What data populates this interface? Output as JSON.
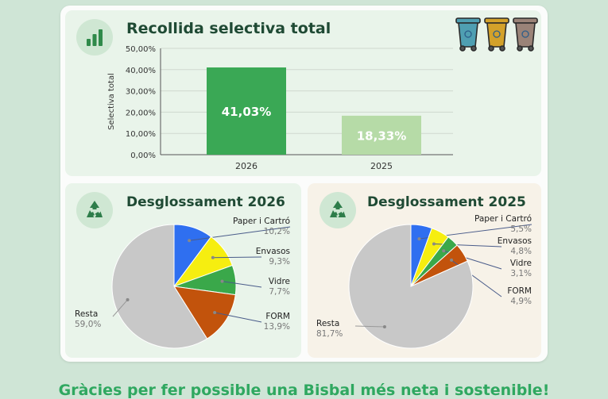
{
  "colors": {
    "bar_2026": "#3aa855",
    "bar_2025": "#b6dba7",
    "paper": "#2f6ff0",
    "envasos": "#f6ee10",
    "vidre": "#3aa84a",
    "form": "#c2530c",
    "resta": "#c8c8c8",
    "title": "#1f4a34",
    "footer": "#2fa860"
  },
  "chart_data": [
    {
      "type": "bar",
      "title": "Recollida selectiva total",
      "categories": [
        "2026",
        "2025"
      ],
      "values": [
        41.03,
        18.33
      ],
      "value_labels": [
        "41,03%",
        "18,33%"
      ],
      "ylabel": "Selectiva total",
      "ylim": [
        0,
        50
      ],
      "yticks": [
        "0,00%",
        "10,00%",
        "20,00%",
        "30,00%",
        "40,00%",
        "50,00%"
      ],
      "grid": true
    },
    {
      "type": "pie",
      "title": "Desglossament 2026",
      "slices": [
        {
          "label": "Paper i Cartró",
          "value": 10.2,
          "display": "10,2%",
          "color": "paper"
        },
        {
          "label": "Envasos",
          "value": 9.3,
          "display": "9,3%",
          "color": "envasos"
        },
        {
          "label": "Vidre",
          "value": 7.7,
          "display": "7,7%",
          "color": "vidre"
        },
        {
          "label": "FORM",
          "value": 13.9,
          "display": "13,9%",
          "color": "form"
        },
        {
          "label": "Resta",
          "value": 59.0,
          "display": "59,0%",
          "color": "resta"
        }
      ]
    },
    {
      "type": "pie",
      "title": "Desglossament 2025",
      "slices": [
        {
          "label": "Paper i Cartró",
          "value": 5.5,
          "display": "5,5%",
          "color": "paper"
        },
        {
          "label": "Envasos",
          "value": 4.8,
          "display": "4,8%",
          "color": "envasos"
        },
        {
          "label": "Vidre",
          "value": 3.1,
          "display": "3,1%",
          "color": "vidre"
        },
        {
          "label": "FORM",
          "value": 4.9,
          "display": "4,9%",
          "color": "form"
        },
        {
          "label": "Resta",
          "value": 81.7,
          "display": "81,7%",
          "color": "resta"
        }
      ]
    }
  ],
  "icons": {
    "bar_chart": "bar-chart-icon",
    "recycle": "recycle-icon",
    "bins": "recycling-bins-icon"
  },
  "footer": "Gràcies per fer possible una Bisbal més neta i sostenible!"
}
